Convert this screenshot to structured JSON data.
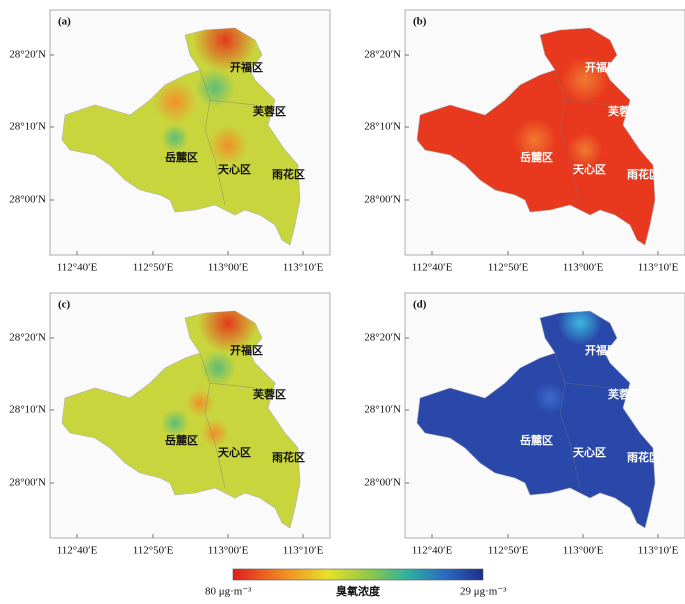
{
  "panels": [
    {
      "label": "(a)"
    },
    {
      "label": "(b)"
    },
    {
      "label": "(c)"
    },
    {
      "label": "(d)"
    }
  ],
  "axes": {
    "yticks": [
      "28°20′N",
      "28°10′N",
      "28°00′N"
    ],
    "xticks": [
      "112°40′E",
      "112°50′E",
      "113°00′E",
      "113°10′E"
    ]
  },
  "districts": [
    "开福区",
    "芙蓉区",
    "岳麓区",
    "天心区",
    "雨花区"
  ],
  "colorbar": {
    "min_label": "80 μg·m⁻³",
    "title": "臭氧浓度",
    "max_label": "29 μg·m⁻³"
  }
}
